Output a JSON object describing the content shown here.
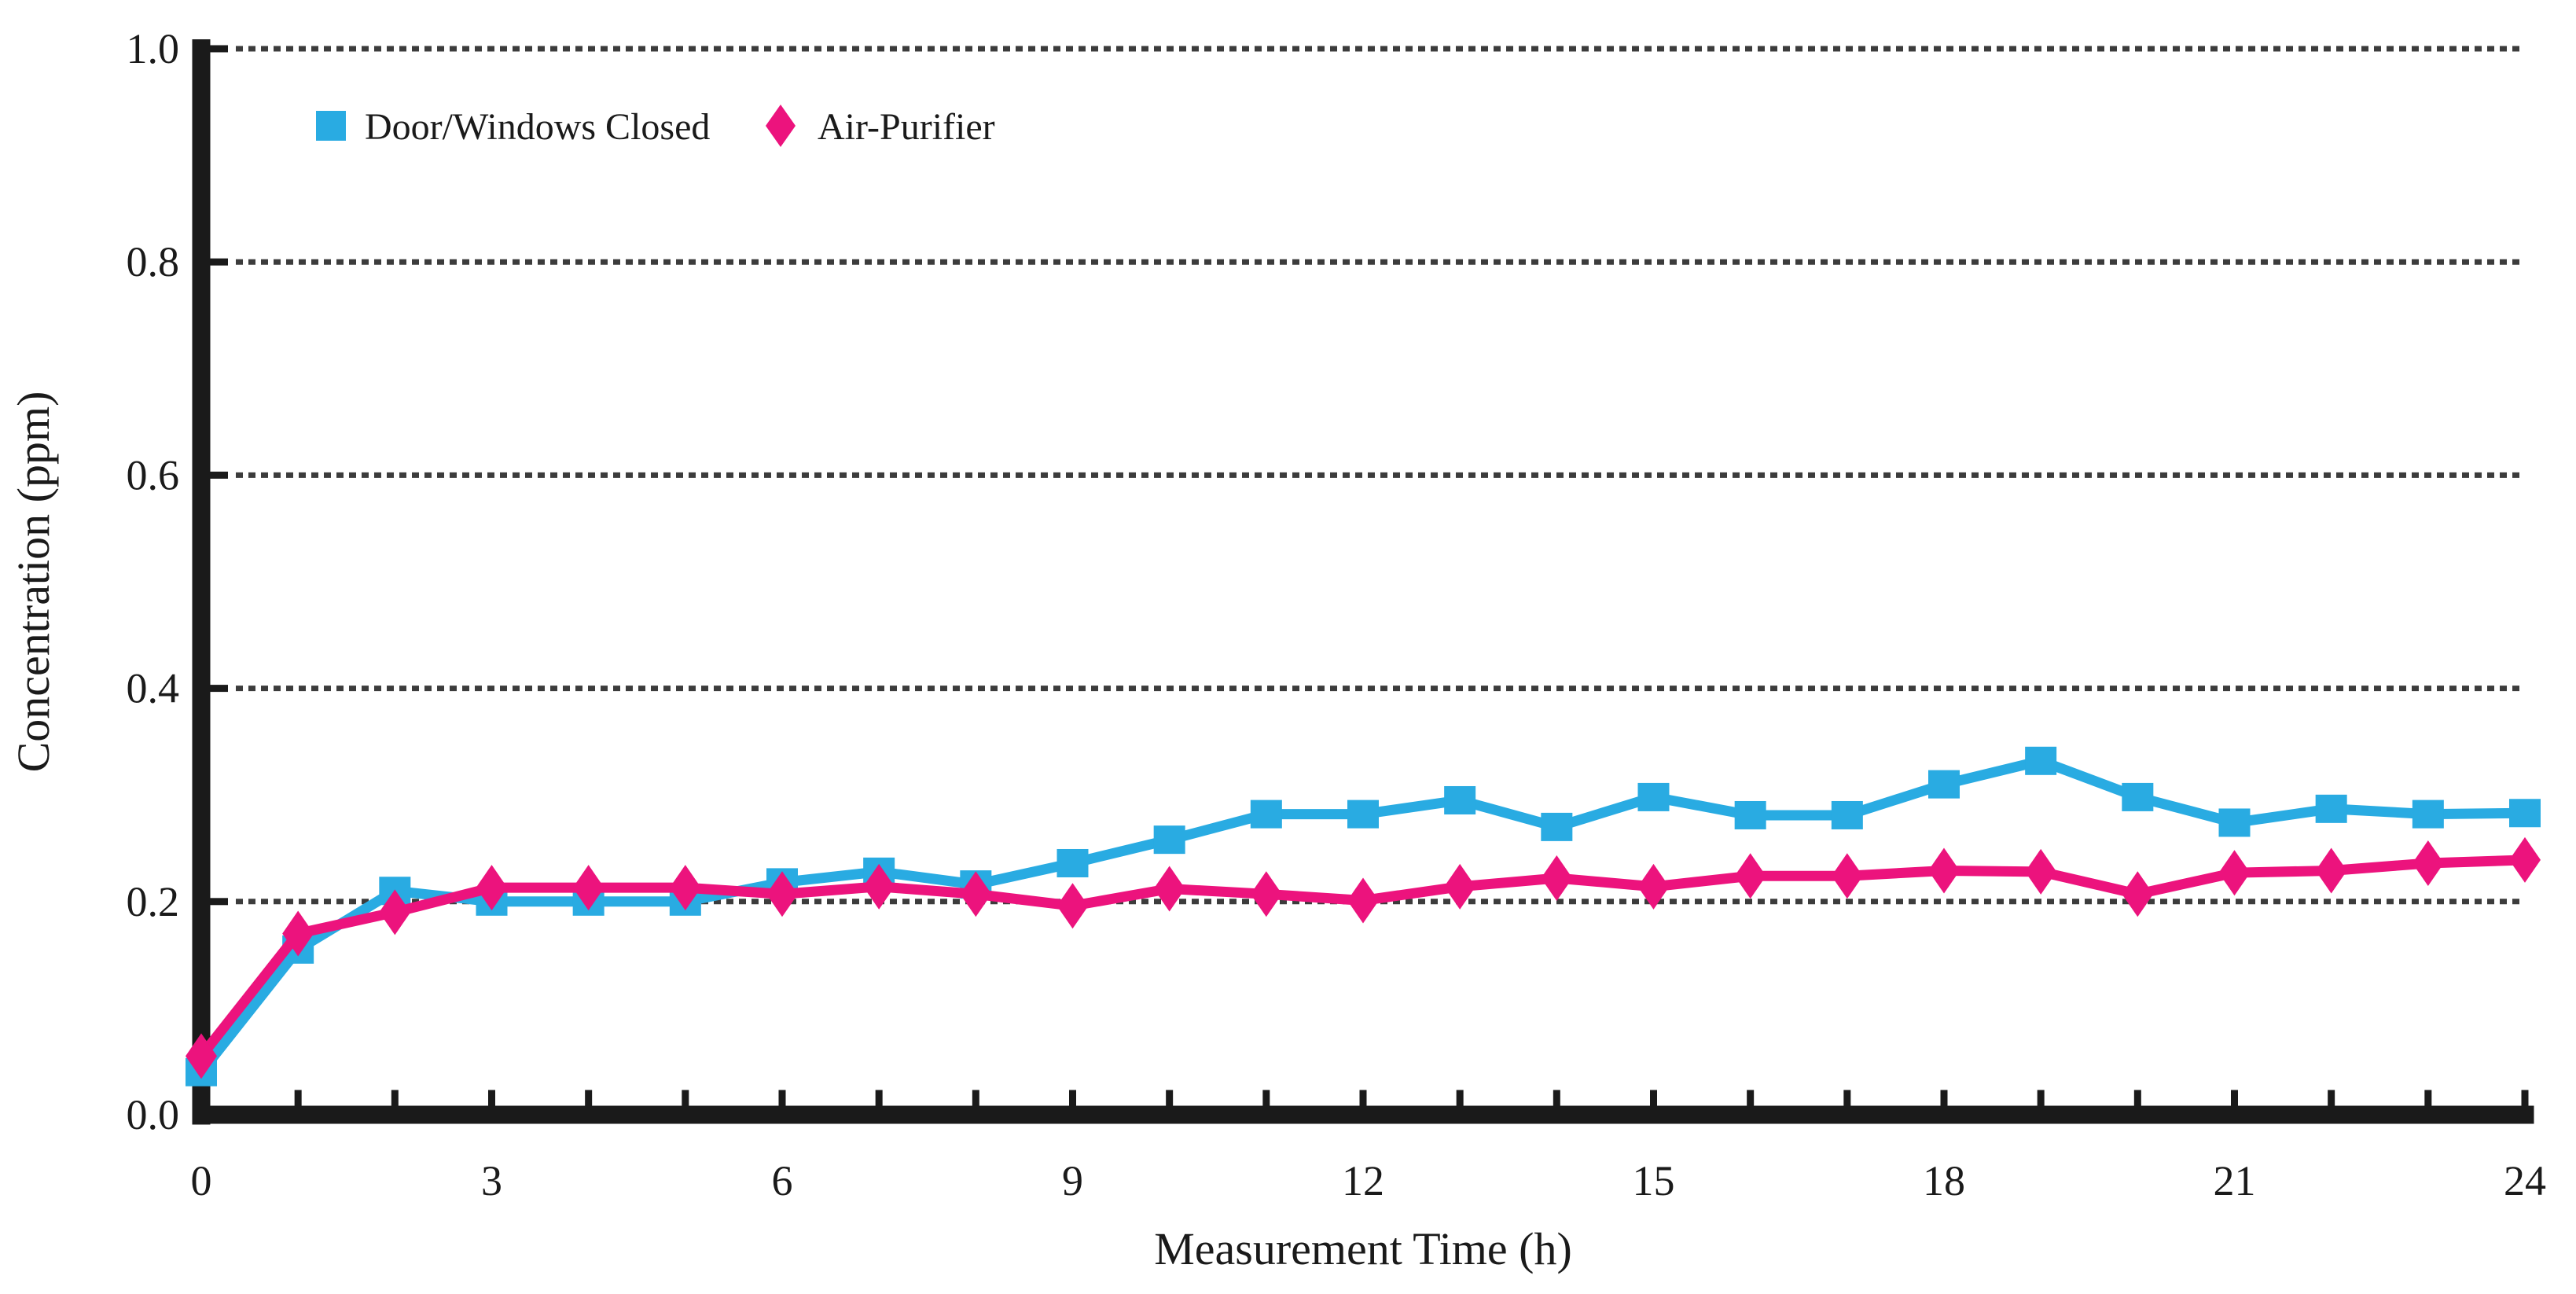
{
  "chart": {
    "legend": [
      {
        "label": "Door/Windows Closed",
        "marker": "square",
        "color": "#29ABE2"
      },
      {
        "label": "Air-Purifier",
        "marker": "diamond",
        "color": "#EC137D"
      }
    ],
    "y_axis": {
      "title": "Concentration (ppm)",
      "tick_labels": [
        "0.0",
        "0.2",
        "0.4",
        "0.6",
        "0.8",
        "1.0"
      ],
      "min": 0.0,
      "max": 1.0
    },
    "x_axis": {
      "title": "Measurement Time (h)",
      "labeled_ticks": [
        "0",
        "3",
        "6",
        "9",
        "12",
        "15",
        "18",
        "21",
        "24"
      ],
      "minor_tick_every_hours": 1,
      "min": 0,
      "max": 24
    },
    "colors": {
      "series_closed": "#29ABE2",
      "series_purifier": "#EC137D",
      "axis": "#1a1a1a",
      "gridline": "#3c3c3c",
      "background": "#ffffff"
    }
  },
  "chart_data": {
    "type": "line",
    "title": "",
    "xlabel": "Measurement Time (h)",
    "ylabel": "Concentration (ppm)",
    "x": [
      0,
      1,
      2,
      3,
      4,
      5,
      6,
      7,
      8,
      9,
      10,
      11,
      12,
      13,
      14,
      15,
      16,
      17,
      18,
      19,
      20,
      21,
      22,
      23,
      24
    ],
    "series": [
      {
        "name": "Door/Windows Closed",
        "color": "#29ABE2",
        "marker": "square",
        "values": [
          0.04,
          0.155,
          0.21,
          0.2,
          0.2,
          0.2,
          0.218,
          0.228,
          0.216,
          0.236,
          0.258,
          0.282,
          0.282,
          0.295,
          0.27,
          0.298,
          0.281,
          0.281,
          0.31,
          0.332,
          0.298,
          0.274,
          0.287,
          0.282,
          0.283
        ]
      },
      {
        "name": "Air-Purifier",
        "color": "#EC137D",
        "marker": "diamond",
        "values": [
          0.055,
          0.17,
          0.19,
          0.213,
          0.213,
          0.213,
          0.207,
          0.214,
          0.207,
          0.196,
          0.212,
          0.207,
          0.201,
          0.214,
          0.222,
          0.214,
          0.224,
          0.224,
          0.229,
          0.228,
          0.207,
          0.227,
          0.229,
          0.236,
          0.239
        ]
      }
    ],
    "xlim": [
      0,
      24
    ],
    "ylim": [
      0.0,
      1.0
    ],
    "x_tick_step_labeled": 3,
    "x_tick_step_minor": 1,
    "y_tick_step": 0.2,
    "grid": "horizontal dotted lines at each y tick",
    "legend_position": "top-left inside plot"
  }
}
